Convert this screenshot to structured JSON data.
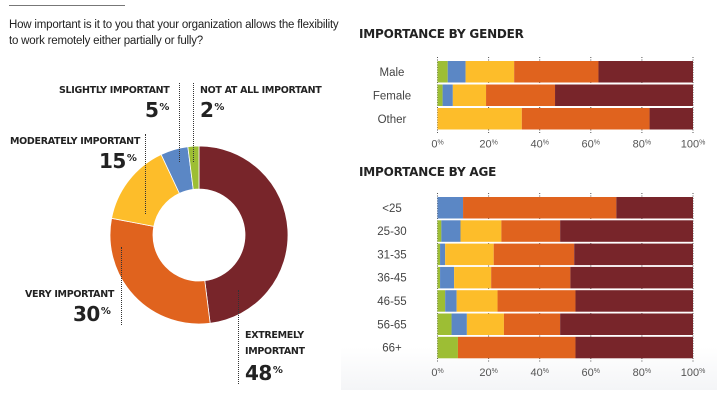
{
  "question": "How important is it to you that your organization allows the flexibility to work remotely either partially or fully?",
  "colors": {
    "not_at_all_important": "#9dbe34",
    "slightly_important": "#5b87c5",
    "moderately_important": "#fdbd2a",
    "very_important": "#e0631e",
    "extremely_important": "#78252a"
  },
  "chart_data": [
    {
      "type": "pie",
      "variant": "donut",
      "title": "How important is it to you that your organization allows the flexibility to work remotely either partially or fully?",
      "slices": [
        {
          "key": "extremely_important",
          "label": "EXTREMELY IMPORTANT",
          "label_lines": [
            "EXTREMELY",
            "IMPORTANT"
          ],
          "value": 48,
          "display": "48"
        },
        {
          "key": "very_important",
          "label": "VERY IMPORTANT",
          "label_lines": [
            "VERY IMPORTANT"
          ],
          "value": 30,
          "display": "30"
        },
        {
          "key": "moderately_important",
          "label": "MODERATELY IMPORTANT",
          "label_lines": [
            "MODERATELY IMPORTANT"
          ],
          "value": 15,
          "display": "15"
        },
        {
          "key": "slightly_important",
          "label": "SLIGHTLY IMPORTANT",
          "label_lines": [
            "SLIGHTLY IMPORTANT"
          ],
          "value": 5,
          "display": "5"
        },
        {
          "key": "not_at_all_important",
          "label": "NOT AT ALL IMPORTANT",
          "label_lines": [
            "NOT AT ALL IMPORTANT"
          ],
          "value": 2,
          "display": "2"
        }
      ],
      "percent_symbol": "%"
    },
    {
      "type": "bar",
      "orientation": "horizontal",
      "stacked": true,
      "title": "IMPORTANCE BY GENDER",
      "categories": [
        "Male",
        "Female",
        "Other"
      ],
      "series": [
        {
          "name": "Not at all important",
          "key": "not_at_all_important",
          "values": [
            4,
            2,
            0
          ]
        },
        {
          "name": "Slightly important",
          "key": "slightly_important",
          "values": [
            7,
            4,
            0
          ]
        },
        {
          "name": "Moderately important",
          "key": "moderately_important",
          "values": [
            19,
            13,
            33
          ]
        },
        {
          "name": "Very important",
          "key": "very_important",
          "values": [
            33,
            27,
            50
          ]
        },
        {
          "name": "Extremely important",
          "key": "extremely_important",
          "values": [
            37,
            54,
            17
          ]
        }
      ],
      "xlim": [
        0,
        100
      ],
      "xticks": [
        "0%",
        "20%",
        "40%",
        "60%",
        "80%",
        "100%"
      ],
      "grid": true
    },
    {
      "type": "bar",
      "orientation": "horizontal",
      "stacked": true,
      "title": "IMPORTANCE BY AGE",
      "categories": [
        "<25",
        "25-30",
        "31-35",
        "36-45",
        "46-55",
        "56-65",
        "66+"
      ],
      "series": [
        {
          "name": "Not at all important",
          "key": "not_at_all_important",
          "values": [
            0,
            1.5,
            1,
            1,
            3,
            5.5,
            8
          ]
        },
        {
          "name": "Slightly important",
          "key": "slightly_important",
          "values": [
            10,
            7.5,
            2,
            5.5,
            4.5,
            6,
            0
          ]
        },
        {
          "name": "Moderately important",
          "key": "moderately_important",
          "values": [
            0,
            16,
            19,
            14.5,
            16,
            14.5,
            0
          ]
        },
        {
          "name": "Very important",
          "key": "very_important",
          "values": [
            60,
            23,
            31.5,
            31,
            30.5,
            22,
            46
          ]
        },
        {
          "name": "Extremely important",
          "key": "extremely_important",
          "values": [
            30,
            52,
            46.5,
            48,
            46,
            52,
            46
          ]
        }
      ],
      "xlim": [
        0,
        100
      ],
      "xticks": [
        "0%",
        "20%",
        "40%",
        "60%",
        "80%",
        "100%"
      ],
      "grid": true
    }
  ]
}
